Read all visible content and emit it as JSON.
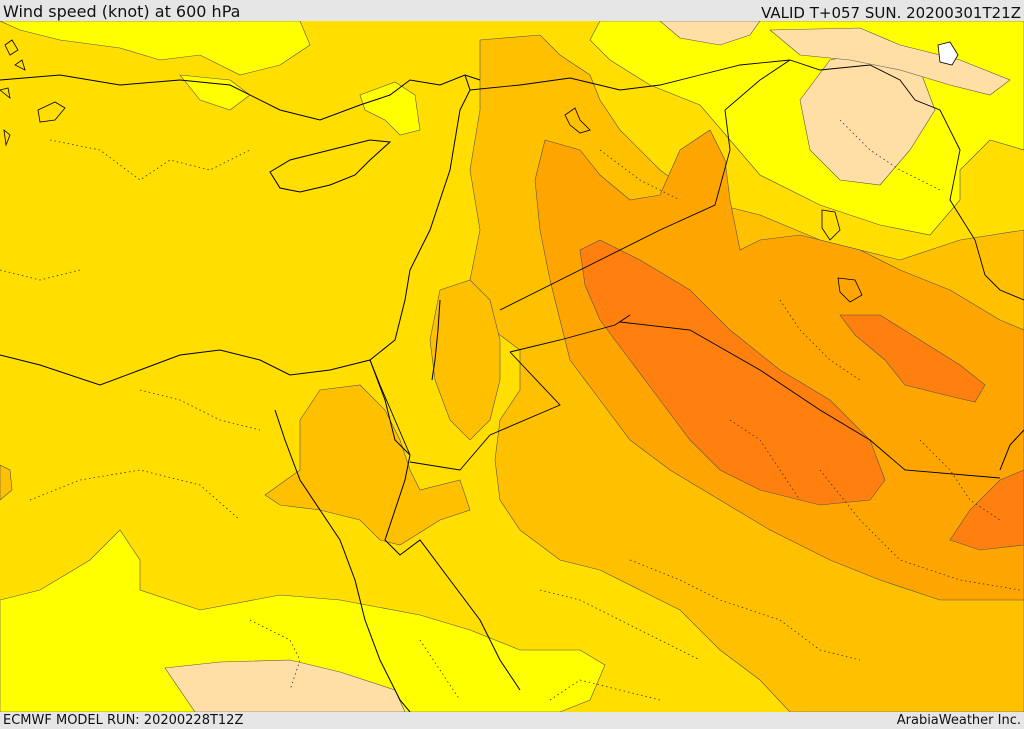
{
  "header": {
    "title": "Wind speed (knot) at 600 hPa",
    "valid": "VALID T+057 SUN. 20200301T21Z"
  },
  "footer": {
    "model_run": "ECMWF MODEL RUN: 20200228T12Z",
    "credit": "ArabiaWeather Inc."
  },
  "map": {
    "colors": {
      "band_light": "#ffdfa6",
      "band_yellow": "#ffff00",
      "band_gold": "#ffde00",
      "band_amber": "#ffc000",
      "band_orange": "#ffa500",
      "band_dark_orange": "#ff7f0f",
      "coastline": "#000000",
      "border_dotted": "#333333"
    }
  }
}
